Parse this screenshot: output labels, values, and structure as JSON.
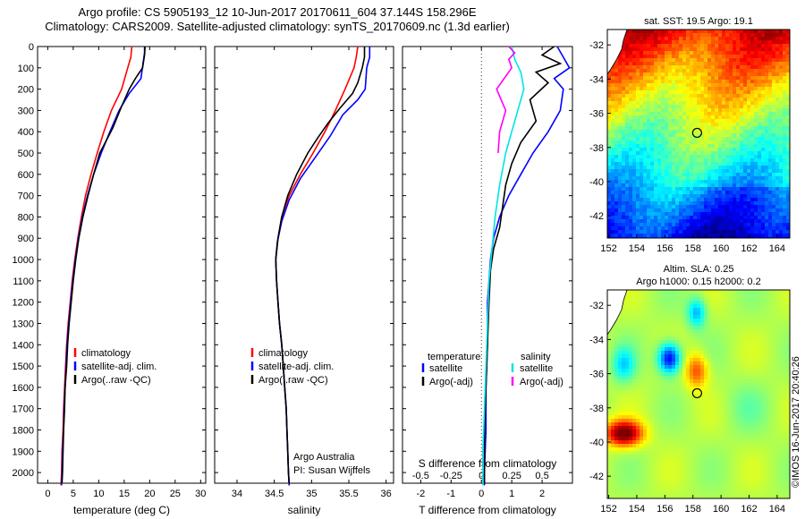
{
  "header": {
    "line1": "Argo profile: CS 5905193_12 10-Jun-2017 20170611_604 37.144S 158.296E",
    "line2": "Climatology: CARS2009. Satellite-adjusted climatology: synTS_20170609.nc (1.3d earlier)"
  },
  "colors": {
    "climatology": "#ff0000",
    "satellite": "#0000ff",
    "argo": "#000000",
    "satellite_s": "#00e5e5",
    "argo_s": "#ff00ff"
  },
  "chart_data": [
    {
      "type": "line",
      "xlabel": "temperature (deg C)",
      "ylim": [
        2050,
        0
      ],
      "xlim": [
        -2,
        31
      ],
      "xticks": [
        0,
        5,
        10,
        15,
        20,
        25,
        30
      ],
      "yticks": [
        0,
        100,
        200,
        300,
        400,
        500,
        600,
        700,
        800,
        900,
        1000,
        1100,
        1200,
        1300,
        1400,
        1500,
        1600,
        1700,
        1800,
        1900,
        2000
      ],
      "y_reversed": true,
      "legend": [
        "climatology",
        "satellite-adj. clim.",
        "Argo(..raw -QC)"
      ],
      "series": [
        {
          "name": "climatology",
          "color": "#ff0000",
          "points": [
            [
              16.5,
              0
            ],
            [
              16.3,
              50
            ],
            [
              15.7,
              100
            ],
            [
              14.5,
              200
            ],
            [
              12.5,
              300
            ],
            [
              11.0,
              400
            ],
            [
              9.7,
              500
            ],
            [
              8.5,
              600
            ],
            [
              7.4,
              700
            ],
            [
              6.6,
              800
            ],
            [
              5.9,
              900
            ],
            [
              5.3,
              1000
            ],
            [
              4.8,
              1100
            ],
            [
              4.4,
              1200
            ],
            [
              4.0,
              1300
            ],
            [
              3.7,
              1400
            ],
            [
              3.5,
              1500
            ],
            [
              3.3,
              1600
            ],
            [
              3.1,
              1700
            ],
            [
              3.0,
              1800
            ],
            [
              2.8,
              1900
            ],
            [
              2.7,
              2000
            ],
            [
              2.6,
              2060
            ]
          ]
        },
        {
          "name": "satellite-adj. clim.",
          "color": "#0000ff",
          "points": [
            [
              19.0,
              0
            ],
            [
              19.0,
              30
            ],
            [
              18.7,
              80
            ],
            [
              18.3,
              150
            ],
            [
              16.0,
              220
            ],
            [
              14.0,
              300
            ],
            [
              12.2,
              400
            ],
            [
              10.5,
              500
            ],
            [
              9.0,
              600
            ],
            [
              7.8,
              700
            ],
            [
              6.8,
              800
            ],
            [
              6.0,
              900
            ],
            [
              5.4,
              1000
            ],
            [
              4.9,
              1100
            ],
            [
              4.5,
              1200
            ],
            [
              4.1,
              1300
            ],
            [
              3.8,
              1400
            ],
            [
              3.6,
              1500
            ],
            [
              3.4,
              1600
            ],
            [
              3.2,
              1700
            ],
            [
              3.1,
              1800
            ],
            [
              2.9,
              1900
            ],
            [
              2.8,
              2000
            ],
            [
              2.7,
              2060
            ]
          ]
        },
        {
          "name": "Argo(..raw -QC)",
          "color": "#000000",
          "points": [
            [
              19.1,
              0
            ],
            [
              19.0,
              40
            ],
            [
              18.6,
              100
            ],
            [
              17.2,
              150
            ],
            [
              16.0,
              200
            ],
            [
              14.5,
              280
            ],
            [
              12.8,
              380
            ],
            [
              11.3,
              450
            ],
            [
              10.2,
              500
            ],
            [
              9.0,
              600
            ],
            [
              7.9,
              700
            ],
            [
              6.9,
              800
            ],
            [
              6.1,
              900
            ],
            [
              5.5,
              1000
            ],
            [
              5.0,
              1100
            ],
            [
              4.6,
              1200
            ],
            [
              4.2,
              1300
            ],
            [
              3.9,
              1400
            ],
            [
              3.7,
              1500
            ],
            [
              3.4,
              1600
            ],
            [
              3.3,
              1700
            ],
            [
              3.1,
              1800
            ],
            [
              3.0,
              1900
            ],
            [
              2.9,
              2000
            ],
            [
              2.8,
              2050
            ]
          ]
        }
      ]
    },
    {
      "type": "line",
      "xlabel": "salinity",
      "ylim": [
        2050,
        0
      ],
      "xlim": [
        33.7,
        36.1
      ],
      "xticks": [
        34,
        34.5,
        35,
        35.5,
        36
      ],
      "y_reversed": true,
      "legend": [
        "climatology",
        "satellite-adj. clim.",
        "Argo(..raw -QC)"
      ],
      "annotation": [
        "Argo Australia",
        "PI: Susan Wijffels"
      ],
      "series": [
        {
          "name": "climatology",
          "color": "#ff0000",
          "points": [
            [
              35.62,
              0
            ],
            [
              35.6,
              50
            ],
            [
              35.57,
              100
            ],
            [
              35.45,
              200
            ],
            [
              35.32,
              300
            ],
            [
              35.18,
              400
            ],
            [
              35.02,
              500
            ],
            [
              34.85,
              600
            ],
            [
              34.7,
              700
            ],
            [
              34.6,
              800
            ],
            [
              34.55,
              900
            ],
            [
              34.52,
              1000
            ],
            [
              34.53,
              1100
            ],
            [
              34.55,
              1200
            ],
            [
              34.57,
              1300
            ],
            [
              34.6,
              1400
            ],
            [
              34.62,
              1500
            ],
            [
              34.64,
              1600
            ],
            [
              34.66,
              1700
            ],
            [
              34.67,
              1800
            ],
            [
              34.68,
              1900
            ],
            [
              34.69,
              2000
            ],
            [
              34.7,
              2060
            ]
          ]
        },
        {
          "name": "satellite-adj. clim.",
          "color": "#0000ff",
          "points": [
            [
              35.78,
              0
            ],
            [
              35.78,
              50
            ],
            [
              35.74,
              100
            ],
            [
              35.72,
              200
            ],
            [
              35.62,
              250
            ],
            [
              35.42,
              320
            ],
            [
              35.25,
              420
            ],
            [
              35.05,
              520
            ],
            [
              34.85,
              620
            ],
            [
              34.7,
              720
            ],
            [
              34.6,
              820
            ],
            [
              34.54,
              920
            ],
            [
              34.52,
              1000
            ],
            [
              34.53,
              1100
            ],
            [
              34.55,
              1200
            ],
            [
              34.57,
              1300
            ],
            [
              34.6,
              1400
            ],
            [
              34.62,
              1500
            ],
            [
              34.64,
              1600
            ],
            [
              34.66,
              1700
            ],
            [
              34.67,
              1800
            ],
            [
              34.68,
              1900
            ],
            [
              34.69,
              2000
            ],
            [
              34.7,
              2060
            ]
          ]
        },
        {
          "name": "Argo(..raw -QC)",
          "color": "#000000",
          "points": [
            [
              35.71,
              0
            ],
            [
              35.71,
              50
            ],
            [
              35.68,
              100
            ],
            [
              35.62,
              170
            ],
            [
              35.55,
              220
            ],
            [
              35.38,
              290
            ],
            [
              35.22,
              360
            ],
            [
              35.08,
              430
            ],
            [
              34.95,
              500
            ],
            [
              34.8,
              600
            ],
            [
              34.68,
              700
            ],
            [
              34.6,
              800
            ],
            [
              34.55,
              900
            ],
            [
              34.52,
              1000
            ],
            [
              34.53,
              1100
            ],
            [
              34.55,
              1200
            ],
            [
              34.57,
              1300
            ],
            [
              34.6,
              1400
            ],
            [
              34.62,
              1500
            ],
            [
              34.64,
              1600
            ],
            [
              34.66,
              1700
            ],
            [
              34.67,
              1800
            ],
            [
              34.68,
              1900
            ],
            [
              34.69,
              2000
            ],
            [
              34.7,
              2050
            ]
          ]
        }
      ]
    },
    {
      "type": "line",
      "xlabel": "T difference from climatology",
      "xlabel_top": "S difference from climatology",
      "ylim": [
        2050,
        0
      ],
      "xlim": [
        -2.6,
        3.0
      ],
      "xticks": [
        -2,
        -1,
        0,
        1,
        2
      ],
      "xticks_s": [
        {
          "label": "-0.5",
          "v": -2
        },
        {
          "label": "-0.25",
          "v": -1
        },
        {
          "label": "0",
          "v": 0
        },
        {
          "label": "0.25",
          "v": 1
        },
        {
          "label": "0.5",
          "v": 2
        }
      ],
      "y_reversed": true,
      "legend": {
        "temperature": "temperature",
        "salinity": "salinity",
        "satellite": "satellite",
        "argo_adj": "Argo(-adj)"
      },
      "series": [
        {
          "name": "satellite",
          "color": "#0000ff",
          "points": [
            [
              2.5,
              0
            ],
            [
              2.7,
              50
            ],
            [
              2.9,
              100
            ],
            [
              2.4,
              150
            ],
            [
              2.7,
              200
            ],
            [
              2.6,
              300
            ],
            [
              2.2,
              400
            ],
            [
              1.7,
              500
            ],
            [
              1.3,
              600
            ],
            [
              0.9,
              700
            ],
            [
              0.6,
              800
            ],
            [
              0.4,
              900
            ],
            [
              0.3,
              1000
            ],
            [
              0.25,
              1100
            ],
            [
              0.2,
              1200
            ],
            [
              0.2,
              1400
            ],
            [
              0.15,
              1600
            ],
            [
              0.15,
              1800
            ],
            [
              0.1,
              2000
            ],
            [
              0.1,
              2060
            ]
          ]
        },
        {
          "name": "Argo(-adj)",
          "color": "#000000",
          "points": [
            [
              2.4,
              0
            ],
            [
              2.0,
              40
            ],
            [
              2.6,
              80
            ],
            [
              1.8,
              120
            ],
            [
              2.2,
              170
            ],
            [
              1.6,
              250
            ],
            [
              1.8,
              350
            ],
            [
              1.3,
              450
            ],
            [
              1.0,
              550
            ],
            [
              0.8,
              650
            ],
            [
              0.7,
              750
            ],
            [
              0.6,
              850
            ],
            [
              0.4,
              950
            ],
            [
              0.3,
              1050
            ],
            [
              0.25,
              1200
            ],
            [
              0.2,
              1400
            ],
            [
              0.15,
              1600
            ],
            [
              0.1,
              1800
            ],
            [
              0.1,
              2000
            ],
            [
              0.1,
              2050
            ]
          ]
        },
        {
          "name": "satellite",
          "color": "#00e5e5",
          "points": [
            [
              1.0,
              0
            ],
            [
              1.1,
              60
            ],
            [
              1.3,
              120
            ],
            [
              1.4,
              200
            ],
            [
              1.2,
              300
            ],
            [
              1.0,
              400
            ],
            [
              0.8,
              500
            ],
            [
              0.6,
              650
            ],
            [
              0.45,
              800
            ],
            [
              0.35,
              950
            ],
            [
              0.25,
              1100
            ],
            [
              0.2,
              1300
            ],
            [
              0.15,
              1500
            ],
            [
              0.1,
              1700
            ],
            [
              0.05,
              1900
            ],
            [
              0.05,
              2060
            ]
          ]
        },
        {
          "name": "Argo(-adj)",
          "color": "#ff00ff",
          "points": [
            [
              0.9,
              0
            ],
            [
              1.1,
              30
            ],
            [
              0.9,
              60
            ],
            [
              1.0,
              100
            ],
            [
              0.5,
              200
            ],
            [
              0.8,
              300
            ],
            [
              0.6,
              400
            ],
            [
              0.55,
              500
            ]
          ]
        }
      ]
    }
  ],
  "maps": {
    "sst": {
      "title": "sat. SST: 19.5 Argo: 19.1",
      "xticks": [
        "152",
        "154",
        "156",
        "158",
        "160",
        "162",
        "164"
      ],
      "yticks": [
        "-32",
        "-34",
        "-36",
        "-38",
        "-40",
        "-42"
      ]
    },
    "sla": {
      "title_line1": "Altim. SLA: 0.25",
      "title_line2": "Argo h1000: 0.15 h2000: 0.2",
      "xticks": [
        "152",
        "154",
        "156",
        "158",
        "160",
        "162",
        "164"
      ],
      "yticks": [
        "-32",
        "-34",
        "-36",
        "-38",
        "-40",
        "-42"
      ]
    },
    "argo_position": {
      "lon": 158.296,
      "lat": -37.144
    }
  },
  "footer": {
    "stamp": "©IMOS 16-Jun-2017 20:40:26"
  }
}
